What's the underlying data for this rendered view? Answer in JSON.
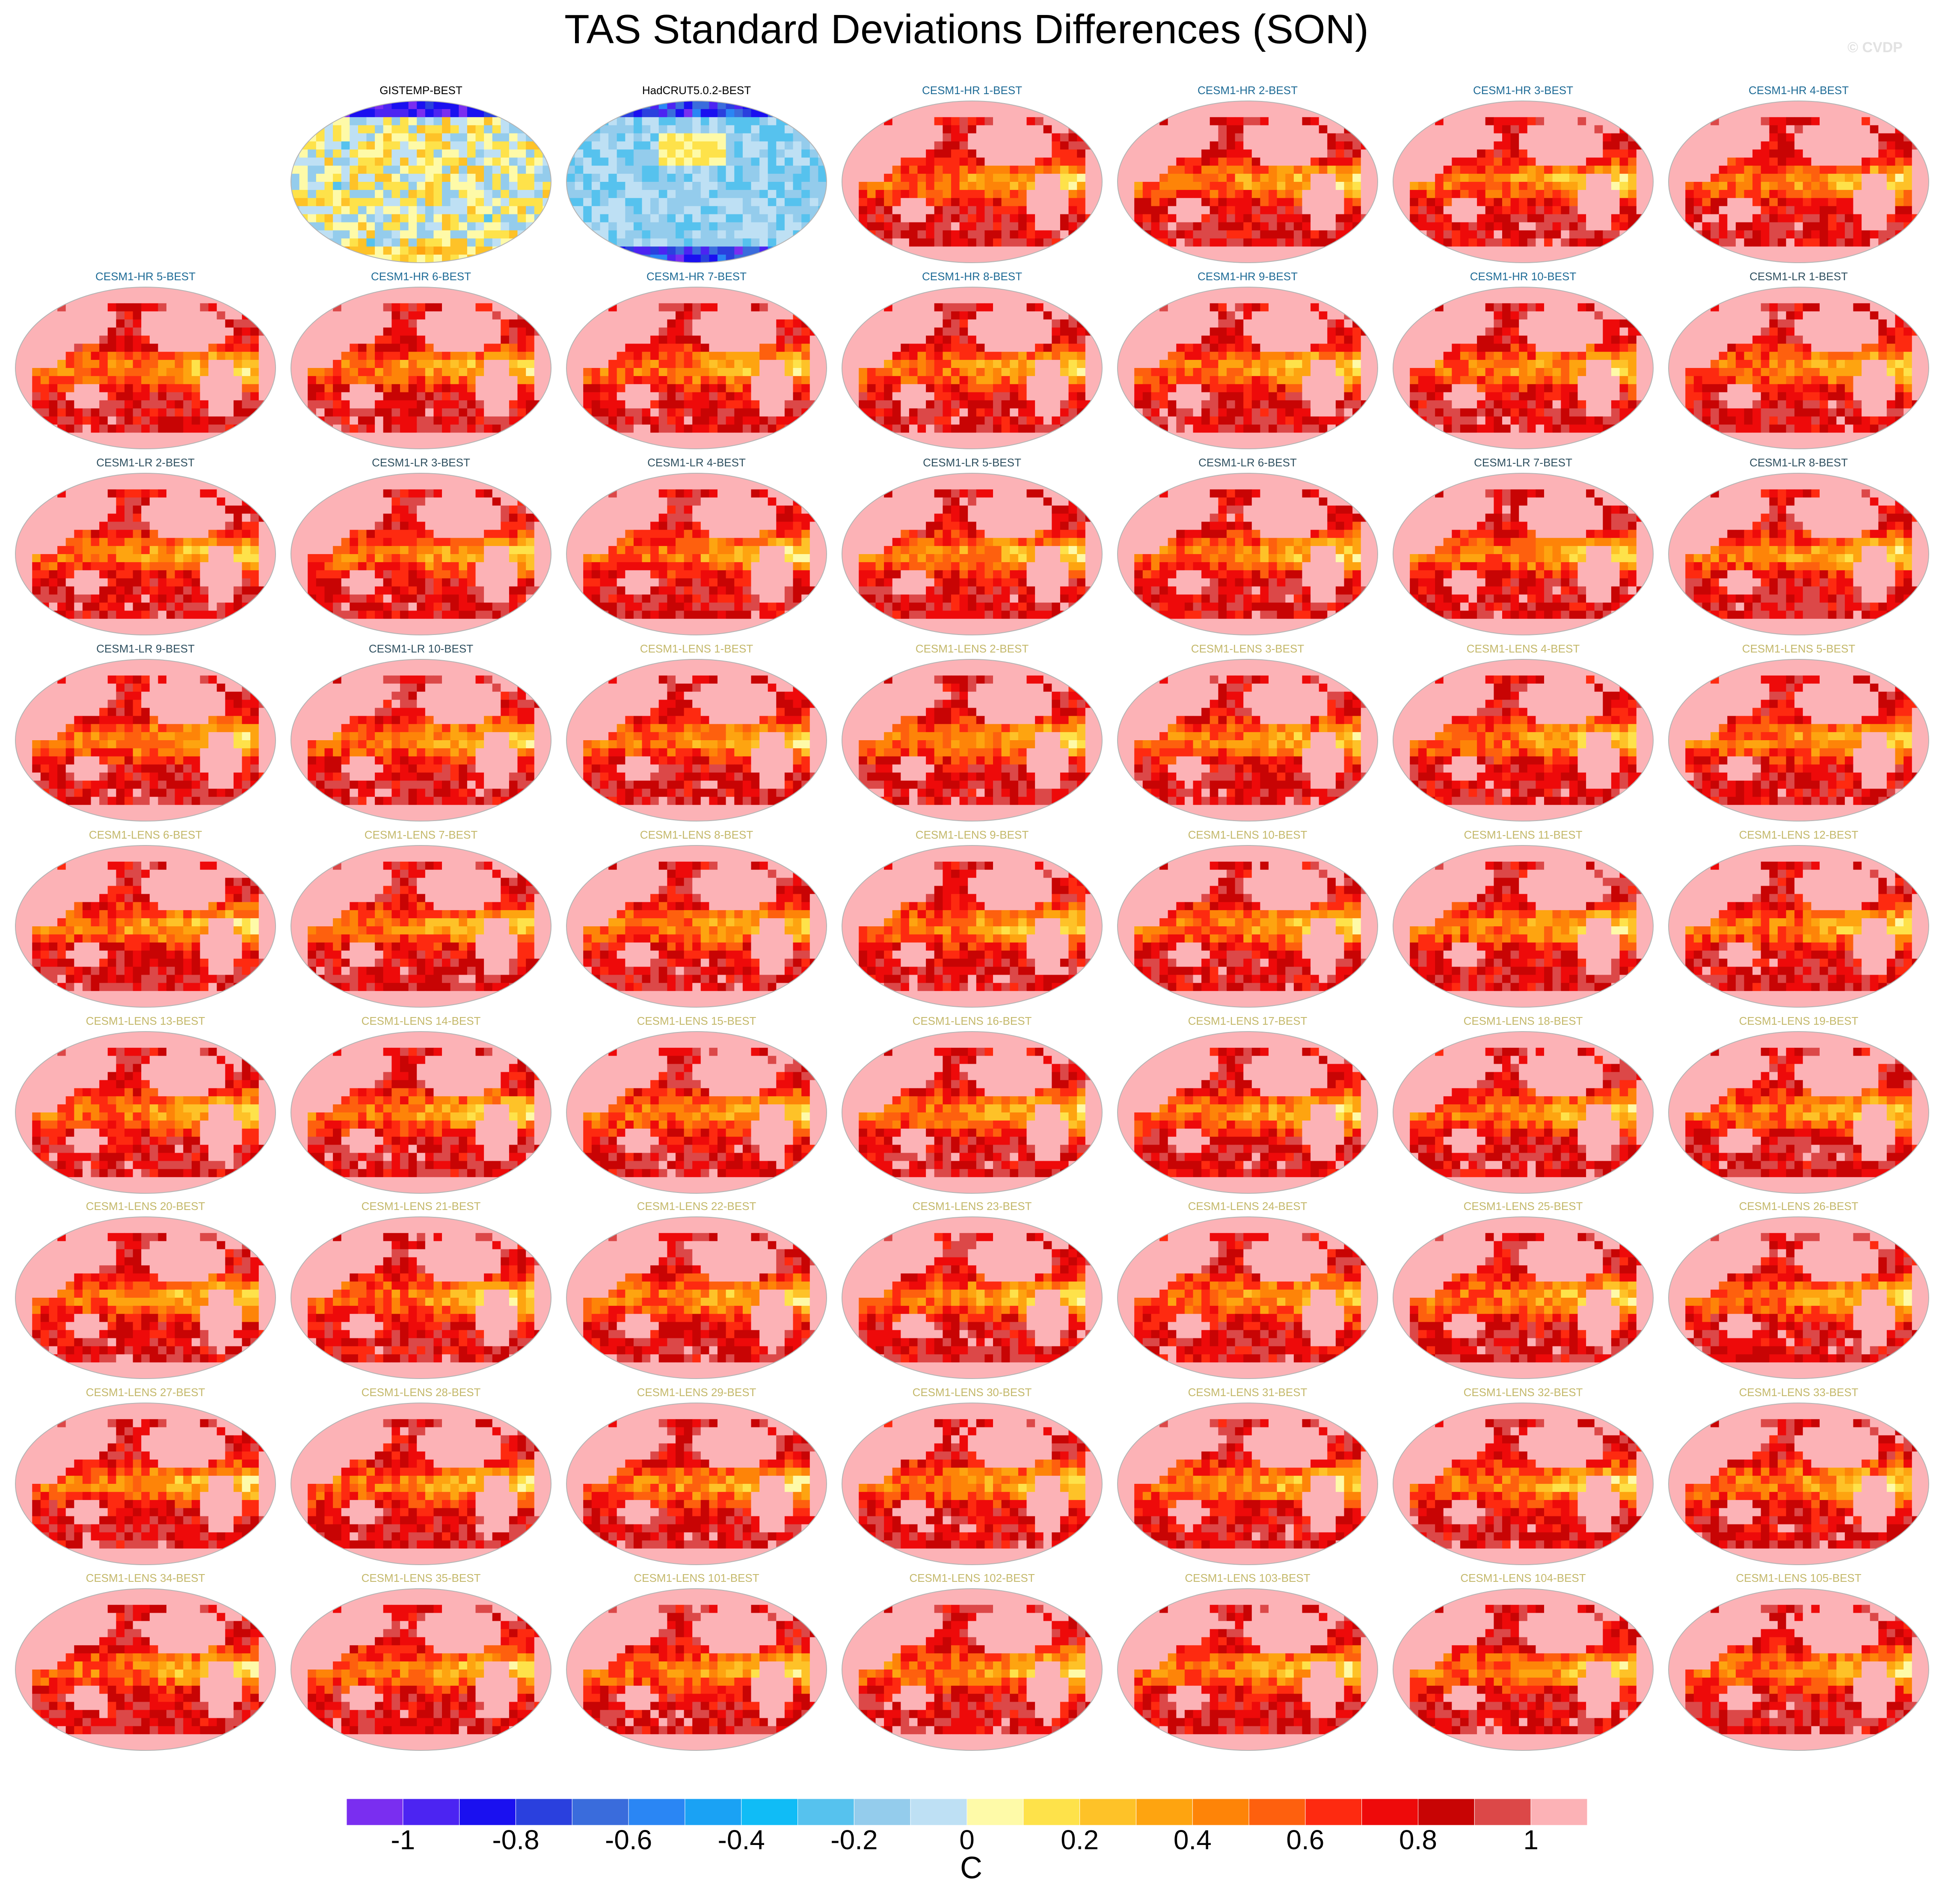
{
  "chart_data": {
    "type": "heatmap",
    "title": "TAS Standard Deviations Differences (SON)",
    "watermark": "© CVDP",
    "panels": [
      {
        "label": "GISTEMP-BEST",
        "group": "obs",
        "regime": "obs-mixed"
      },
      {
        "label": "HadCRUT5.0.2-BEST",
        "group": "obs",
        "regime": "obs-cool"
      },
      {
        "label": "CESM1-HR 1-BEST",
        "group": "hr",
        "regime": "model-warm"
      },
      {
        "label": "CESM1-HR 2-BEST",
        "group": "hr",
        "regime": "model-warm"
      },
      {
        "label": "CESM1-HR 3-BEST",
        "group": "hr",
        "regime": "model-warm"
      },
      {
        "label": "CESM1-HR 4-BEST",
        "group": "hr",
        "regime": "model-warm"
      },
      {
        "label": "CESM1-HR 5-BEST",
        "group": "hr",
        "regime": "model-warm"
      },
      {
        "label": "CESM1-HR 6-BEST",
        "group": "hr",
        "regime": "model-warm"
      },
      {
        "label": "CESM1-HR 7-BEST",
        "group": "hr",
        "regime": "model-warm"
      },
      {
        "label": "CESM1-HR 8-BEST",
        "group": "hr",
        "regime": "model-warm"
      },
      {
        "label": "CESM1-HR 9-BEST",
        "group": "hr",
        "regime": "model-warm"
      },
      {
        "label": "CESM1-HR 10-BEST",
        "group": "hr",
        "regime": "model-warm"
      },
      {
        "label": "CESM1-LR 1-BEST",
        "group": "lr",
        "regime": "model-warm"
      },
      {
        "label": "CESM1-LR 2-BEST",
        "group": "lr",
        "regime": "model-warm"
      },
      {
        "label": "CESM1-LR 3-BEST",
        "group": "lr",
        "regime": "model-warm"
      },
      {
        "label": "CESM1-LR 4-BEST",
        "group": "lr",
        "regime": "model-warm"
      },
      {
        "label": "CESM1-LR 5-BEST",
        "group": "lr",
        "regime": "model-warm"
      },
      {
        "label": "CESM1-LR 6-BEST",
        "group": "lr",
        "regime": "model-warm"
      },
      {
        "label": "CESM1-LR 7-BEST",
        "group": "lr",
        "regime": "model-warm"
      },
      {
        "label": "CESM1-LR 8-BEST",
        "group": "lr",
        "regime": "model-warm"
      },
      {
        "label": "CESM1-LR 9-BEST",
        "group": "lr",
        "regime": "model-warm"
      },
      {
        "label": "CESM1-LR 10-BEST",
        "group": "lr",
        "regime": "model-warm"
      },
      {
        "label": "CESM1-LENS 1-BEST",
        "group": "lens",
        "regime": "model-warm"
      },
      {
        "label": "CESM1-LENS 2-BEST",
        "group": "lens",
        "regime": "model-warm"
      },
      {
        "label": "CESM1-LENS 3-BEST",
        "group": "lens",
        "regime": "model-warm"
      },
      {
        "label": "CESM1-LENS 4-BEST",
        "group": "lens",
        "regime": "model-warm"
      },
      {
        "label": "CESM1-LENS 5-BEST",
        "group": "lens",
        "regime": "model-warm"
      },
      {
        "label": "CESM1-LENS 6-BEST",
        "group": "lens",
        "regime": "model-warm"
      },
      {
        "label": "CESM1-LENS 7-BEST",
        "group": "lens",
        "regime": "model-warm"
      },
      {
        "label": "CESM1-LENS 8-BEST",
        "group": "lens",
        "regime": "model-warm"
      },
      {
        "label": "CESM1-LENS 9-BEST",
        "group": "lens",
        "regime": "model-warm"
      },
      {
        "label": "CESM1-LENS 10-BEST",
        "group": "lens",
        "regime": "model-warm"
      },
      {
        "label": "CESM1-LENS 11-BEST",
        "group": "lens",
        "regime": "model-warm"
      },
      {
        "label": "CESM1-LENS 12-BEST",
        "group": "lens",
        "regime": "model-warm"
      },
      {
        "label": "CESM1-LENS 13-BEST",
        "group": "lens",
        "regime": "model-warm"
      },
      {
        "label": "CESM1-LENS 14-BEST",
        "group": "lens",
        "regime": "model-warm"
      },
      {
        "label": "CESM1-LENS 15-BEST",
        "group": "lens",
        "regime": "model-warm"
      },
      {
        "label": "CESM1-LENS 16-BEST",
        "group": "lens",
        "regime": "model-warm"
      },
      {
        "label": "CESM1-LENS 17-BEST",
        "group": "lens",
        "regime": "model-warm"
      },
      {
        "label": "CESM1-LENS 18-BEST",
        "group": "lens",
        "regime": "model-warm"
      },
      {
        "label": "CESM1-LENS 19-BEST",
        "group": "lens",
        "regime": "model-warm"
      },
      {
        "label": "CESM1-LENS 20-BEST",
        "group": "lens",
        "regime": "model-warm"
      },
      {
        "label": "CESM1-LENS 21-BEST",
        "group": "lens",
        "regime": "model-warm"
      },
      {
        "label": "CESM1-LENS 22-BEST",
        "group": "lens",
        "regime": "model-warm"
      },
      {
        "label": "CESM1-LENS 23-BEST",
        "group": "lens",
        "regime": "model-warm"
      },
      {
        "label": "CESM1-LENS 24-BEST",
        "group": "lens",
        "regime": "model-warm"
      },
      {
        "label": "CESM1-LENS 25-BEST",
        "group": "lens",
        "regime": "model-warm"
      },
      {
        "label": "CESM1-LENS 26-BEST",
        "group": "lens",
        "regime": "model-warm"
      },
      {
        "label": "CESM1-LENS 27-BEST",
        "group": "lens",
        "regime": "model-warm"
      },
      {
        "label": "CESM1-LENS 28-BEST",
        "group": "lens",
        "regime": "model-warm"
      },
      {
        "label": "CESM1-LENS 29-BEST",
        "group": "lens",
        "regime": "model-warm"
      },
      {
        "label": "CESM1-LENS 30-BEST",
        "group": "lens",
        "regime": "model-warm"
      },
      {
        "label": "CESM1-LENS 31-BEST",
        "group": "lens",
        "regime": "model-warm"
      },
      {
        "label": "CESM1-LENS 32-BEST",
        "group": "lens",
        "regime": "model-warm"
      },
      {
        "label": "CESM1-LENS 33-BEST",
        "group": "lens",
        "regime": "model-warm"
      },
      {
        "label": "CESM1-LENS 34-BEST",
        "group": "lens",
        "regime": "model-warm"
      },
      {
        "label": "CESM1-LENS 35-BEST",
        "group": "lens",
        "regime": "model-warm"
      },
      {
        "label": "CESM1-LENS 101-BEST",
        "group": "lens",
        "regime": "model-warm"
      },
      {
        "label": "CESM1-LENS 102-BEST",
        "group": "lens",
        "regime": "model-warm"
      },
      {
        "label": "CESM1-LENS 103-BEST",
        "group": "lens",
        "regime": "model-warm"
      },
      {
        "label": "CESM1-LENS 104-BEST",
        "group": "lens",
        "regime": "model-warm"
      },
      {
        "label": "CESM1-LENS 105-BEST",
        "group": "lens",
        "regime": "model-warm"
      }
    ],
    "group_title_colors": {
      "obs": "#000000",
      "hr": "#1e6b96",
      "lr": "#2f5060",
      "lens": "#c4b86a"
    },
    "colorbar": {
      "unit": "C",
      "levels": [
        -1.1,
        -1.0,
        -0.9,
        -0.8,
        -0.7,
        -0.6,
        -0.5,
        -0.4,
        -0.3,
        -0.2,
        -0.1,
        0.0,
        0.1,
        0.2,
        0.3,
        0.4,
        0.5,
        0.6,
        0.7,
        0.8,
        0.9,
        1.0,
        1.1
      ],
      "colors": [
        "#7a2ef0",
        "#4c24f2",
        "#1a10f0",
        "#2a40de",
        "#3a6cdc",
        "#2a86f4",
        "#1aa2f4",
        "#10bcf6",
        "#56c2ee",
        "#94ccec",
        "#bee0f4",
        "#fefaa8",
        "#fee24a",
        "#fec228",
        "#fea410",
        "#fe8408",
        "#fe600e",
        "#fe2a10",
        "#ee0a0a",
        "#c80404",
        "#dc4848",
        "#fcb2b6"
      ],
      "tick_values": [
        -1,
        -0.8,
        -0.6,
        -0.4,
        -0.2,
        0,
        0.2,
        0.4,
        0.6,
        0.8,
        1
      ],
      "tick_labels": [
        "-1",
        "-0.8",
        "-0.6",
        "-0.4",
        "-0.2",
        "0",
        "0.2",
        "0.4",
        "0.6",
        "0.8",
        "1"
      ]
    }
  }
}
